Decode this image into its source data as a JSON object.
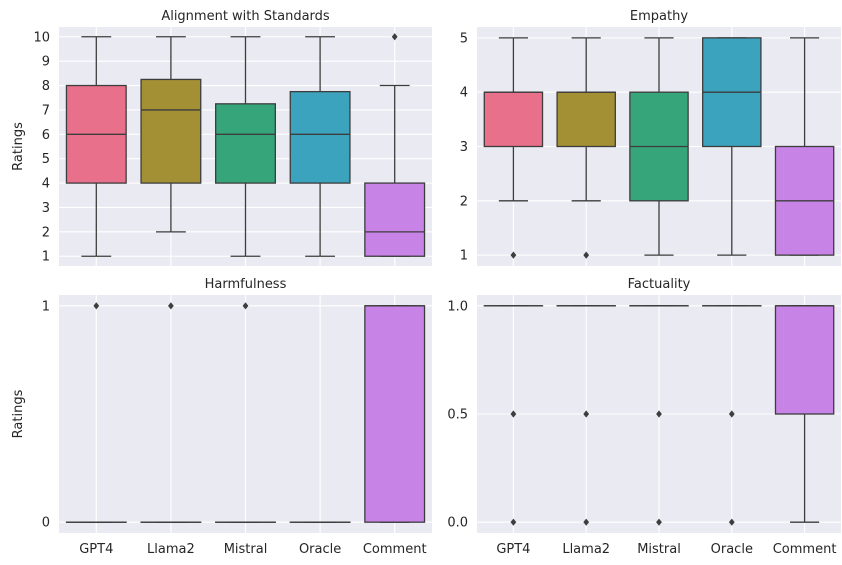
{
  "chart_data": [
    {
      "type": "box",
      "title": "Alignment with Standards",
      "ylabel": "Ratings",
      "xlabel": "",
      "categories": [
        "GPT4",
        "Llama2",
        "Mistral",
        "Oracle",
        "Comment"
      ],
      "ylim": [
        0.6,
        10.4
      ],
      "yticks": [
        1,
        2,
        3,
        4,
        5,
        6,
        7,
        8,
        9,
        10
      ],
      "ytick_labels": [
        "1",
        "2",
        "3",
        "4",
        "5",
        "6",
        "7",
        "8",
        "9",
        "10"
      ],
      "show_xticks": false,
      "boxes": [
        {
          "whisker_low": 1,
          "q1": 4,
          "median": 6,
          "q3": 8,
          "whisker_high": 10,
          "outliers": []
        },
        {
          "whisker_low": 2,
          "q1": 4,
          "median": 7,
          "q3": 8.25,
          "whisker_high": 10,
          "outliers": []
        },
        {
          "whisker_low": 1,
          "q1": 4,
          "median": 6,
          "q3": 7.25,
          "whisker_high": 10,
          "outliers": []
        },
        {
          "whisker_low": 1,
          "q1": 4,
          "median": 6,
          "q3": 7.75,
          "whisker_high": 10,
          "outliers": []
        },
        {
          "whisker_low": 1,
          "q1": 1,
          "median": 2,
          "q3": 4,
          "whisker_high": 8,
          "outliers": [
            10
          ]
        }
      ]
    },
    {
      "type": "box",
      "title": "Empathy",
      "ylabel": "",
      "xlabel": "",
      "categories": [
        "GPT4",
        "Llama2",
        "Mistral",
        "Oracle",
        "Comment"
      ],
      "ylim": [
        0.8,
        5.2
      ],
      "yticks": [
        1,
        2,
        3,
        4,
        5
      ],
      "ytick_labels": [
        "1",
        "2",
        "3",
        "4",
        "5"
      ],
      "show_xticks": false,
      "boxes": [
        {
          "whisker_low": 2,
          "q1": 3,
          "median": 4,
          "q3": 4,
          "whisker_high": 5,
          "outliers": [
            1
          ]
        },
        {
          "whisker_low": 2,
          "q1": 3,
          "median": 4,
          "q3": 4,
          "whisker_high": 5,
          "outliers": [
            1
          ]
        },
        {
          "whisker_low": 1,
          "q1": 2,
          "median": 3,
          "q3": 4,
          "whisker_high": 5,
          "outliers": []
        },
        {
          "whisker_low": 1,
          "q1": 3,
          "median": 4,
          "q3": 5,
          "whisker_high": 5,
          "outliers": []
        },
        {
          "whisker_low": 1,
          "q1": 1,
          "median": 2,
          "q3": 3,
          "whisker_high": 5,
          "outliers": []
        }
      ]
    },
    {
      "type": "box",
      "title": "Harmfulness",
      "ylabel": "Ratings",
      "xlabel": "",
      "categories": [
        "GPT4",
        "Llama2",
        "Mistral",
        "Oracle",
        "Comment"
      ],
      "ylim": [
        -0.05,
        1.05
      ],
      "yticks": [
        0,
        1
      ],
      "ytick_labels": [
        "0",
        "1"
      ],
      "show_xticks": true,
      "boxes": [
        {
          "whisker_low": 0,
          "q1": 0,
          "median": 0,
          "q3": 0,
          "whisker_high": 0,
          "outliers": [
            1
          ]
        },
        {
          "whisker_low": 0,
          "q1": 0,
          "median": 0,
          "q3": 0,
          "whisker_high": 0,
          "outliers": [
            1
          ]
        },
        {
          "whisker_low": 0,
          "q1": 0,
          "median": 0,
          "q3": 0,
          "whisker_high": 0,
          "outliers": [
            1
          ]
        },
        {
          "whisker_low": 0,
          "q1": 0,
          "median": 0,
          "q3": 0,
          "whisker_high": 0,
          "outliers": []
        },
        {
          "whisker_low": 0,
          "q1": 0,
          "median": 1,
          "q3": 1,
          "whisker_high": 1,
          "outliers": []
        }
      ]
    },
    {
      "type": "box",
      "title": "Factuality",
      "ylabel": "",
      "xlabel": "",
      "categories": [
        "GPT4",
        "Llama2",
        "Mistral",
        "Oracle",
        "Comment"
      ],
      "ylim": [
        -0.05,
        1.05
      ],
      "yticks": [
        0,
        0.5,
        1
      ],
      "ytick_labels": [
        "0.0",
        "0.5",
        "1.0"
      ],
      "show_xticks": true,
      "boxes": [
        {
          "whisker_low": 1,
          "q1": 1,
          "median": 1,
          "q3": 1,
          "whisker_high": 1,
          "outliers": [
            0,
            0.5
          ]
        },
        {
          "whisker_low": 1,
          "q1": 1,
          "median": 1,
          "q3": 1,
          "whisker_high": 1,
          "outliers": [
            0,
            0.5
          ]
        },
        {
          "whisker_low": 1,
          "q1": 1,
          "median": 1,
          "q3": 1,
          "whisker_high": 1,
          "outliers": [
            0,
            0.5
          ]
        },
        {
          "whisker_low": 1,
          "q1": 1,
          "median": 1,
          "q3": 1,
          "whisker_high": 1,
          "outliers": [
            0,
            0.5
          ]
        },
        {
          "whisker_low": 0,
          "q1": 0.5,
          "median": 1,
          "q3": 1,
          "whisker_high": 1,
          "outliers": []
        }
      ]
    }
  ],
  "colors": {
    "palette": [
      "#e8708a",
      "#a38f34",
      "#36a57a",
      "#3ba3be",
      "#c883e6"
    ],
    "background": "#eaeaf2",
    "grid": "#ffffff",
    "line": "#3d3d3d"
  }
}
